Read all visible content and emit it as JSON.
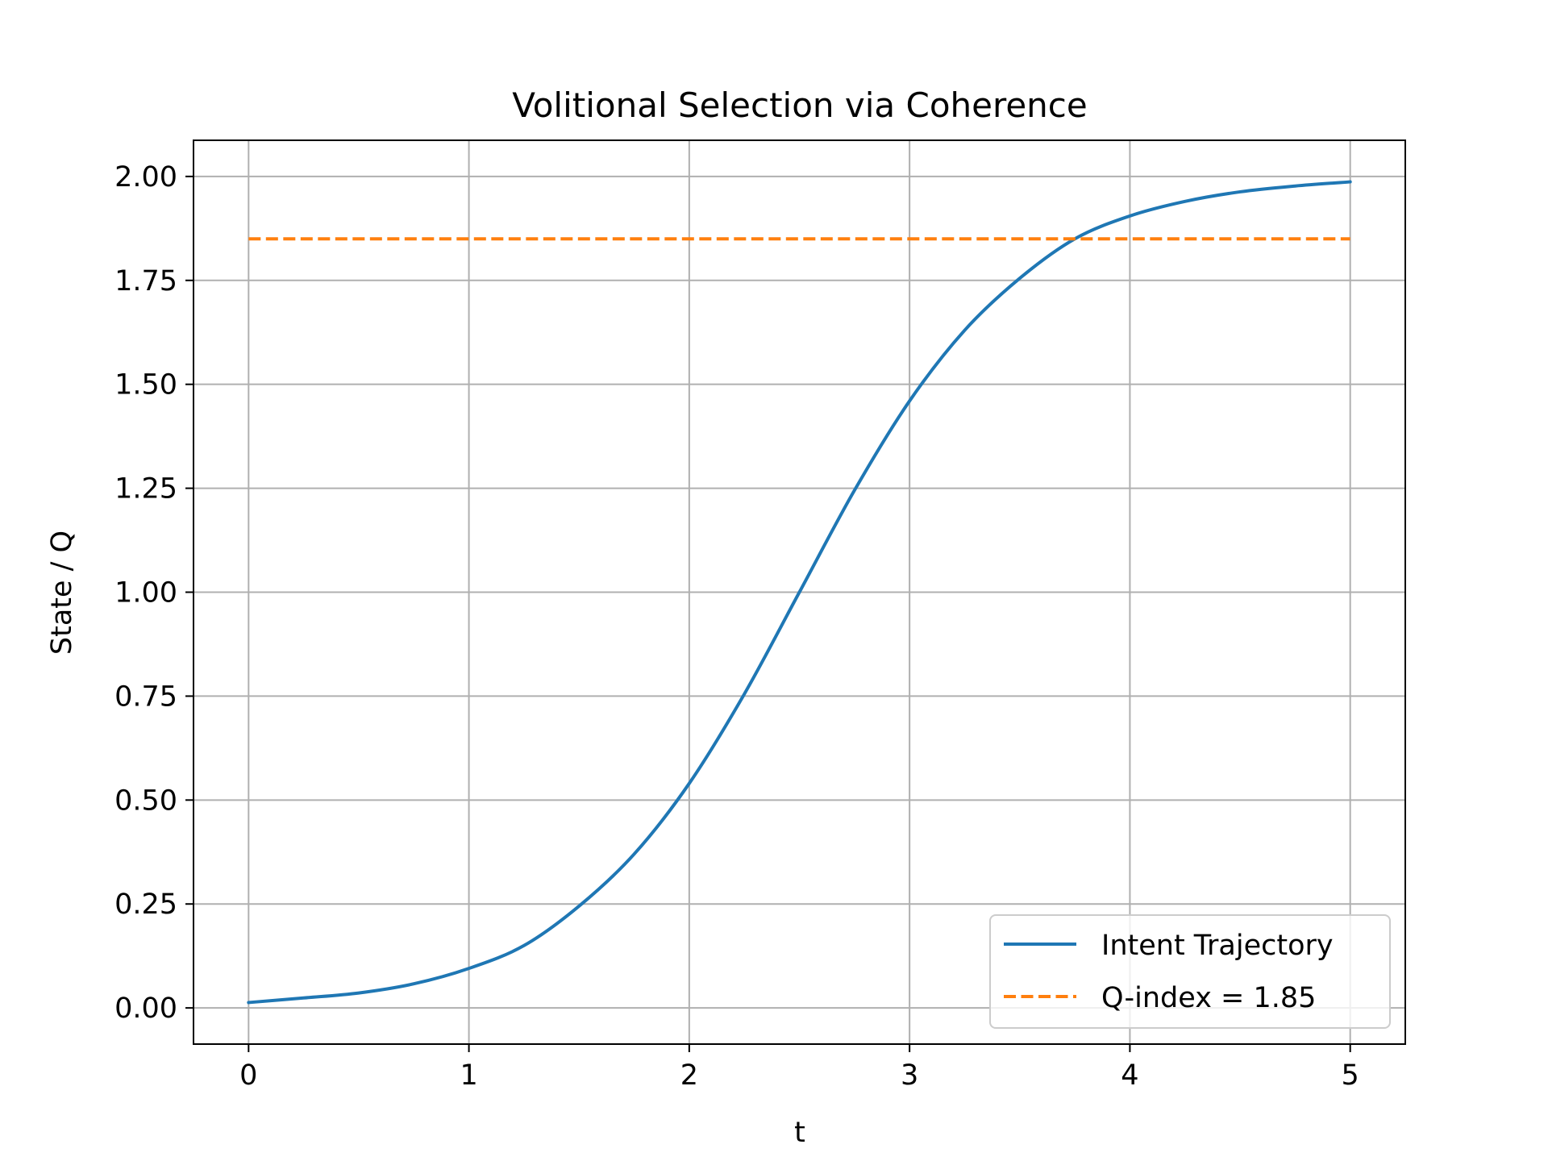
{
  "chart_data": {
    "type": "line",
    "title": "Volitional Selection via Coherence",
    "xlabel": "t",
    "ylabel": "State / Q",
    "xlim": [
      -0.25,
      5.25
    ],
    "ylim": [
      -0.087,
      2.087
    ],
    "xticks": [
      0,
      1,
      2,
      3,
      4,
      5
    ],
    "xtick_labels": [
      "0",
      "1",
      "2",
      "3",
      "4",
      "5"
    ],
    "yticks": [
      0.0,
      0.25,
      0.5,
      0.75,
      1.0,
      1.25,
      1.5,
      1.75,
      2.0
    ],
    "ytick_labels": [
      "0.00",
      "0.25",
      "0.50",
      "0.75",
      "1.00",
      "1.25",
      "1.50",
      "1.75",
      "2.00"
    ],
    "grid": true,
    "legend_position": "lower-right",
    "series": [
      {
        "name": "Intent Trajectory",
        "color": "#1f77b4",
        "style": "solid",
        "x": [
          0,
          0.25,
          0.5,
          0.75,
          1.0,
          1.25,
          1.5,
          1.75,
          2.0,
          2.25,
          2.5,
          2.75,
          3.0,
          3.25,
          3.5,
          3.75,
          4.0,
          4.25,
          4.5,
          4.75,
          5.0
        ],
        "y": [
          0.013,
          0.024,
          0.036,
          0.058,
          0.095,
          0.15,
          0.245,
          0.37,
          0.54,
          0.755,
          1.0,
          1.245,
          1.46,
          1.63,
          1.755,
          1.85,
          1.905,
          1.94,
          1.963,
          1.977,
          1.987
        ]
      },
      {
        "name": "Q-index = 1.85",
        "color": "#ff7f0e",
        "style": "dashed",
        "x": [
          0,
          5
        ],
        "y": [
          1.85,
          1.85
        ]
      }
    ]
  }
}
